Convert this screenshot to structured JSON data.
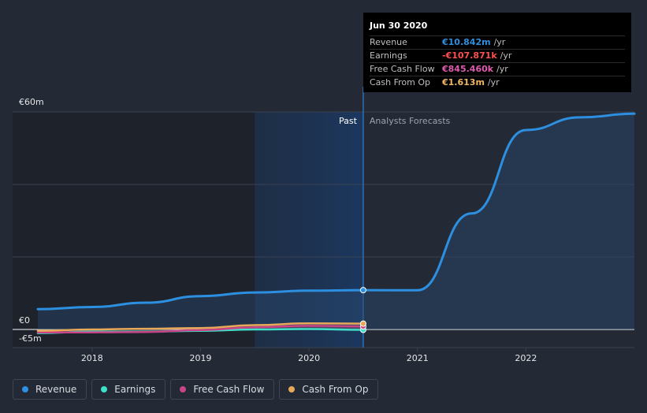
{
  "chart_data": {
    "type": "line",
    "y_axis": {
      "min": -5,
      "max": 60,
      "unit": "€m",
      "top_label": "€60m",
      "zero_label": "€0",
      "bottom_label": "-€5m",
      "gridlines": [
        0,
        20,
        40,
        60
      ]
    },
    "x_axis": {
      "min": 2017.5,
      "max": 2023.0,
      "ticks": [
        {
          "value": 2018,
          "label": "2018"
        },
        {
          "value": 2019,
          "label": "2019"
        },
        {
          "value": 2020,
          "label": "2020"
        },
        {
          "value": 2021,
          "label": "2021"
        },
        {
          "value": 2022,
          "label": "2022"
        }
      ]
    },
    "divider_x": 2020.5,
    "past_label": "Past",
    "forecast_label": "Analysts Forecasts",
    "series": [
      {
        "name": "Revenue",
        "color": "#2d8fe0",
        "points": [
          [
            2017.5,
            5.6
          ],
          [
            2018.0,
            6.2
          ],
          [
            2018.5,
            7.4
          ],
          [
            2019.0,
            9.2
          ],
          [
            2019.5,
            10.2
          ],
          [
            2020.0,
            10.7
          ],
          [
            2020.5,
            10.842
          ]
        ],
        "forecast": [
          [
            2020.5,
            10.842
          ],
          [
            2021.0,
            10.8
          ],
          [
            2021.5,
            32.0
          ],
          [
            2022.0,
            55.0
          ],
          [
            2022.5,
            58.5
          ],
          [
            2023.0,
            59.5
          ]
        ]
      },
      {
        "name": "Earnings",
        "color": "#3ee0c8",
        "points": [
          [
            2017.5,
            -1.0
          ],
          [
            2018.0,
            -0.6
          ],
          [
            2018.5,
            -0.6
          ],
          [
            2019.0,
            -0.4
          ],
          [
            2019.5,
            0.0
          ],
          [
            2020.0,
            0.1
          ],
          [
            2020.5,
            -0.108
          ]
        ]
      },
      {
        "name": "Free Cash Flow",
        "color": "#c94486",
        "points": [
          [
            2017.5,
            -0.8
          ],
          [
            2018.0,
            -0.8
          ],
          [
            2018.5,
            -0.7
          ],
          [
            2019.0,
            -0.2
          ],
          [
            2019.5,
            0.6
          ],
          [
            2020.0,
            1.0
          ],
          [
            2020.5,
            0.845
          ]
        ]
      },
      {
        "name": "Cash From Op",
        "color": "#e8a85a",
        "points": [
          [
            2017.5,
            -0.4
          ],
          [
            2018.0,
            0.0
          ],
          [
            2018.5,
            0.2
          ],
          [
            2019.0,
            0.4
          ],
          [
            2019.5,
            1.2
          ],
          [
            2020.0,
            1.7
          ],
          [
            2020.5,
            1.613
          ]
        ]
      }
    ]
  },
  "tooltip": {
    "date": "Jun 30 2020",
    "rows": [
      {
        "label": "Revenue",
        "value": "€10.842m",
        "unit": "/yr",
        "color": "#2d8fe0"
      },
      {
        "label": "Earnings",
        "value": "-€107.871k",
        "unit": "/yr",
        "color": "#ff5050"
      },
      {
        "label": "Free Cash Flow",
        "value": "€845.460k",
        "unit": "/yr",
        "color": "#e05ab0"
      },
      {
        "label": "Cash From Op",
        "value": "€1.613m",
        "unit": "/yr",
        "color": "#f0b866"
      }
    ]
  },
  "legend": [
    {
      "label": "Revenue",
      "color": "#2d8fe0"
    },
    {
      "label": "Earnings",
      "color": "#3ee0c8"
    },
    {
      "label": "Free Cash Flow",
      "color": "#c94486"
    },
    {
      "label": "Cash From Op",
      "color": "#e8a85a"
    }
  ]
}
